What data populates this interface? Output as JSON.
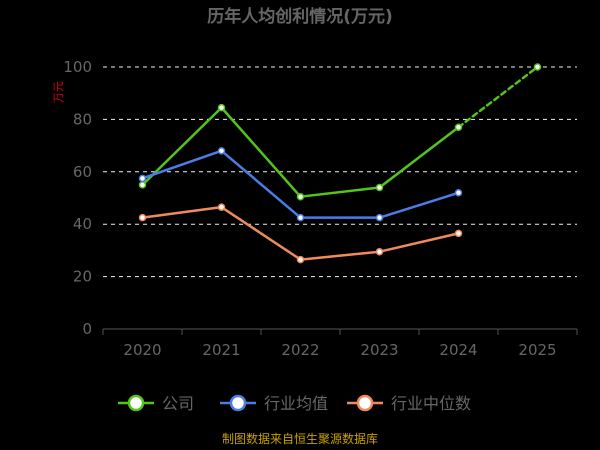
{
  "chart_data": {
    "type": "line",
    "title": "历年人均创利情况(万元)",
    "ylabel": "万元",
    "xlabel": "",
    "categories": [
      "2020",
      "2021",
      "2022",
      "2023",
      "2024",
      "2025"
    ],
    "ylim": [
      0,
      100
    ],
    "yticks": [
      0,
      20,
      40,
      60,
      80,
      100
    ],
    "grid": true,
    "legend_position": "bottom",
    "series": [
      {
        "name": "公司",
        "color": "#52c41a",
        "values": [
          55,
          84.5,
          50.5,
          54,
          77,
          100
        ],
        "dashed_last_segment": true
      },
      {
        "name": "行业均值",
        "color": "#4a7de8",
        "values": [
          57.5,
          68,
          42.5,
          42.5,
          52,
          null
        ]
      },
      {
        "name": "行业中位数",
        "color": "#f08a5d",
        "values": [
          42.5,
          46.5,
          26.5,
          29.5,
          36.5,
          null
        ]
      }
    ]
  },
  "footer": {
    "source": "制图数据来自恒生聚源数据库"
  }
}
